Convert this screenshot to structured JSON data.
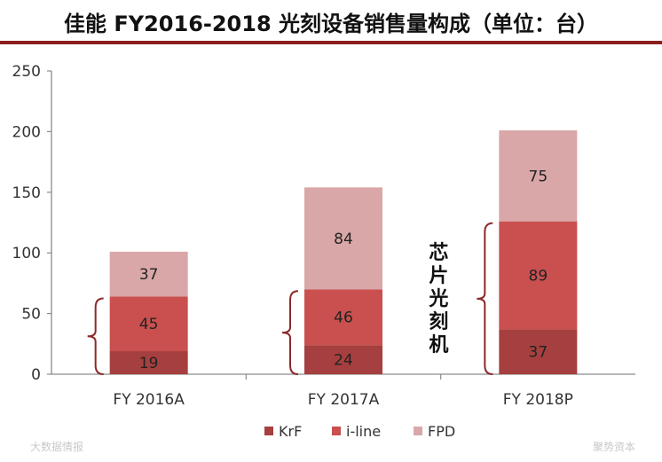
{
  "title": "佳能 FY2016-2018 光刻设备销售量构成（单位：台）",
  "colors": {
    "title_rule": "#8b1e1e",
    "axis": "#8c8c8c",
    "bracket": "#8b2a2a"
  },
  "annotation": {
    "text": [
      "芯",
      "片",
      "光",
      "刻",
      "机"
    ]
  },
  "watermarks": {
    "left": "大数据情报",
    "right": "聚势资本"
  },
  "chart_data": {
    "type": "bar",
    "stacked": true,
    "title": "佳能 FY2016-2018 光刻设备销售量构成（单位：台）",
    "categories": [
      "FY 2016A",
      "FY 2017A",
      "FY 2018P"
    ],
    "series": [
      {
        "name": "KrF",
        "values": [
          19,
          24,
          37
        ],
        "color": "#a63f3f"
      },
      {
        "name": "i-line",
        "values": [
          45,
          46,
          89
        ],
        "color": "#c9504f"
      },
      {
        "name": "FPD",
        "values": [
          37,
          84,
          75
        ],
        "color": "#d9a7a8"
      }
    ],
    "ylim": [
      0,
      250
    ],
    "yticks": [
      0,
      50,
      100,
      150,
      200,
      250
    ],
    "grid": false,
    "legend": "bottom"
  }
}
